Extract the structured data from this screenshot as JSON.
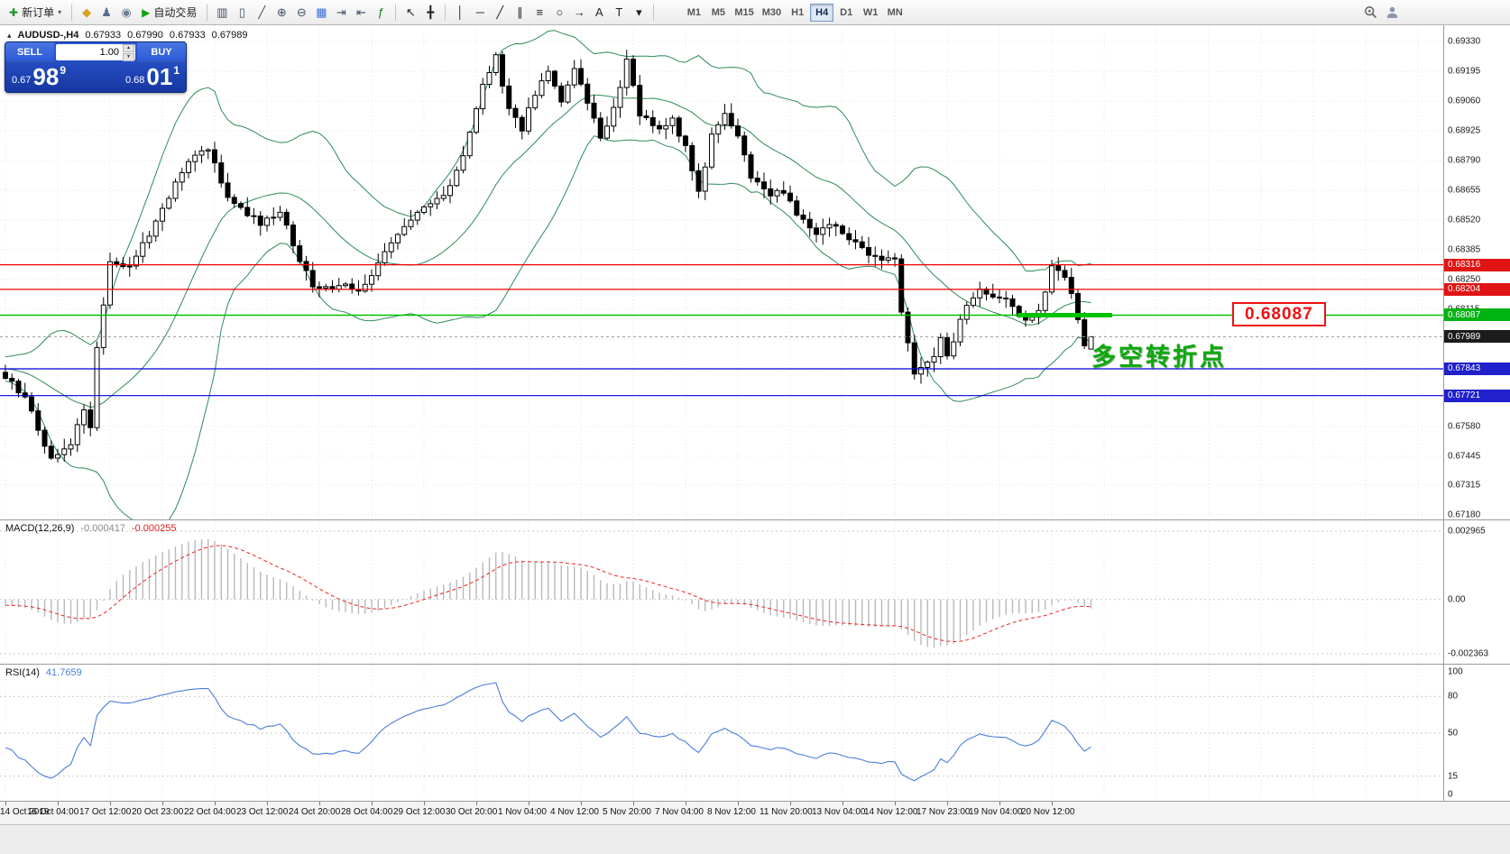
{
  "colors": {
    "bollinger": "#2e8b57",
    "grid": "#e4e4e4",
    "candle_up_fill": "#ffffff",
    "candle_down_fill": "#000000",
    "candle_outline": "#000000",
    "resistance_red": "#ee0000",
    "pivot_green": "#00c300",
    "support_blue": "#0000dd",
    "bid_line": "#9a9a9a",
    "macd_histogram": "#b9b9b9",
    "macd_signal": "#ee2222",
    "rsi_line": "#4a7edb",
    "level_dotted": "#c9c9c9",
    "badge_red": "#e11414",
    "badge_green": "#00b312",
    "badge_blue": "#2020cc",
    "badge_current": "#1c1c1c"
  },
  "toolbar": {
    "items": [
      {
        "type": "labelbtn",
        "name": "new-order-button",
        "glyph": "✚",
        "glyph_color": "#18962c",
        "label": "新订单",
        "caret": true
      },
      {
        "type": "sep"
      },
      {
        "type": "icon",
        "name": "metaeditor-icon",
        "glyph": "◆",
        "color": "#d9a21b"
      },
      {
        "type": "icon",
        "name": "profiles-icon",
        "glyph": "♟",
        "color": "#5a6b8c"
      },
      {
        "type": "icon",
        "name": "data-window-icon",
        "glyph": "◉",
        "color": "#6f7f95"
      },
      {
        "type": "labelbtn",
        "name": "autotrading-button",
        "glyph": "▶",
        "glyph_color": "#12a312",
        "label": "自动交易",
        "caret": false
      },
      {
        "type": "sep"
      },
      {
        "type": "icon",
        "name": "bar-chart-icon",
        "glyph": "▥",
        "color": "#3f4f63"
      },
      {
        "type": "icon",
        "name": "candlestick-chart-icon",
        "glyph": "▯",
        "color": "#3f4f63"
      },
      {
        "type": "icon",
        "name": "line-chart-icon",
        "glyph": "╱",
        "color": "#3f4f63"
      },
      {
        "type": "icon",
        "name": "zoom-in-icon",
        "glyph": "⊕",
        "color": "#3f4f63"
      },
      {
        "type": "icon",
        "name": "zoom-out-icon",
        "glyph": "⊖",
        "color": "#3f4f63"
      },
      {
        "type": "icon",
        "name": "tile-windows-icon",
        "glyph": "▦",
        "color": "#3a6fd8"
      },
      {
        "type": "icon",
        "name": "auto-scroll-icon",
        "glyph": "⇥",
        "color": "#3f4f63"
      },
      {
        "type": "icon",
        "name": "chart-shift-icon",
        "glyph": "⇤",
        "color": "#3f4f63"
      },
      {
        "type": "icon",
        "name": "indicators-icon",
        "glyph": "ƒ",
        "color": "#0c8a0c"
      },
      {
        "type": "sep"
      },
      {
        "type": "icon",
        "name": "cursor-icon",
        "glyph": "↖",
        "color": "#222222"
      },
      {
        "type": "icon",
        "name": "crosshair-icon",
        "glyph": "╋",
        "color": "#222222"
      },
      {
        "type": "sep"
      },
      {
        "type": "icon",
        "name": "vertical-line-icon",
        "glyph": "│",
        "color": "#222222"
      },
      {
        "type": "icon",
        "name": "horizontal-line-icon",
        "glyph": "─",
        "color": "#222222"
      },
      {
        "type": "icon",
        "name": "trendline-icon",
        "glyph": "╱",
        "color": "#222222"
      },
      {
        "type": "icon",
        "name": "equidistant-channel-icon",
        "glyph": "∥",
        "color": "#222222"
      },
      {
        "type": "icon",
        "name": "fibonacci-icon",
        "glyph": "≡",
        "color": "#222222"
      },
      {
        "type": "icon",
        "name": "shapes-icon",
        "glyph": "○",
        "color": "#222222"
      },
      {
        "type": "icon",
        "name": "arrows-icon",
        "glyph": "→",
        "color": "#222222"
      },
      {
        "type": "icon",
        "name": "text-icon",
        "glyph": "A",
        "color": "#222222"
      },
      {
        "type": "icon",
        "name": "text-label-icon",
        "glyph": "T",
        "color": "#222222"
      },
      {
        "type": "icon",
        "name": "objects-dropdown-icon",
        "glyph": "▾",
        "color": "#222222"
      },
      {
        "type": "sep"
      }
    ],
    "timeframes": [
      "M1",
      "M5",
      "M15",
      "M30",
      "H1",
      "H4",
      "D1",
      "W1",
      "MN"
    ],
    "active_timeframe": "H4"
  },
  "symbol_header": {
    "symbol": "AUDUSD-,H4",
    "open": "0.67933",
    "high": "0.67990",
    "low": "0.67933",
    "close": "0.67989"
  },
  "trade_panel": {
    "sell_label": "SELL",
    "buy_label": "BUY",
    "volume": "1.00",
    "sell_small": "0.67",
    "sell_big": "98",
    "sell_sup": "9",
    "buy_small": "0.68",
    "buy_big": "01",
    "buy_sup": "1"
  },
  "main_chart": {
    "price_ticks": [
      "0.69330",
      "0.69195",
      "0.69060",
      "0.68925",
      "0.68790",
      "0.68655",
      "0.68520",
      "0.68385",
      "0.68250",
      "0.68115",
      "0.67980",
      "0.67845",
      "0.67710",
      "0.67580",
      "0.67445",
      "0.67315",
      "0.67180"
    ],
    "badges": [
      {
        "text": "0.68316",
        "price": 0.68316,
        "type": "red"
      },
      {
        "text": "0.68204",
        "price": 0.68204,
        "type": "red"
      },
      {
        "text": "0.68087",
        "price": 0.68087,
        "type": "green"
      },
      {
        "text": "0.67989",
        "price": 0.67989,
        "type": "current"
      },
      {
        "text": "0.67843",
        "price": 0.67843,
        "type": "blue"
      },
      {
        "text": "0.67721",
        "price": 0.67721,
        "type": "blue"
      }
    ],
    "hlines": [
      {
        "price": 0.68316,
        "type": "red"
      },
      {
        "price": 0.68204,
        "type": "red"
      },
      {
        "price": 0.68087,
        "type": "green"
      },
      {
        "price": 0.67843,
        "type": "blue"
      },
      {
        "price": 0.67721,
        "type": "blue"
      }
    ],
    "bid_price": 0.67989,
    "callout": "0.68087",
    "annotation": "多空转折点"
  },
  "macd_panel": {
    "name": "MACD(12,26,9)",
    "value_main": "-0.000417",
    "value_signal": "-0.000255",
    "axis": [
      {
        "text": "0.002965",
        "value": 0.002965
      },
      {
        "text": "0.00",
        "value": 0
      },
      {
        "text": "-0.002363",
        "value": -0.002363
      }
    ]
  },
  "rsi_panel": {
    "name": "RSI(14)",
    "value": "41.7659",
    "axis": [
      {
        "text": "100",
        "value": 100
      },
      {
        "text": "80",
        "value": 80
      },
      {
        "text": "50",
        "value": 50
      },
      {
        "text": "15",
        "value": 15
      },
      {
        "text": "0",
        "value": 0
      }
    ],
    "levels": [
      80,
      50,
      15
    ]
  },
  "time_axis": [
    "14 Oct 2019",
    "16 Oct 04:00",
    "17 Oct 12:00",
    "20 Oct 23:00",
    "22 Oct 04:00",
    "23 Oct 12:00",
    "24 Oct 20:00",
    "28 Oct 04:00",
    "29 Oct 12:00",
    "30 Oct 20:00",
    "1 Nov 04:00",
    "4 Nov 12:00",
    "5 Nov 20:00",
    "7 Nov 04:00",
    "8 Nov 12:00",
    "11 Nov 20:00",
    "13 Nov 04:00",
    "14 Nov 12:00",
    "17 Nov 23:00",
    "19 Nov 04:00",
    "20 Nov 12:00"
  ],
  "chart_data": {
    "type": "candlestick",
    "symbol": "AUDUSD-",
    "timeframe": "H4",
    "current_candle": {
      "open": 0.67933,
      "high": 0.6799,
      "low": 0.67933,
      "close": 0.67989
    },
    "bid": 0.67989,
    "ask": 0.68011,
    "price_range": [
      0.6718,
      0.6933
    ],
    "candle_count": 167,
    "price_anchors": [
      [
        0,
        0.67808
      ],
      [
        3,
        0.67705
      ],
      [
        7,
        0.67438
      ],
      [
        10,
        0.675
      ],
      [
        12,
        0.67664
      ],
      [
        13,
        0.67582
      ],
      [
        14,
        0.67951
      ],
      [
        16,
        0.68321
      ],
      [
        19,
        0.683
      ],
      [
        21,
        0.68403
      ],
      [
        24,
        0.68567
      ],
      [
        28,
        0.68793
      ],
      [
        31,
        0.68834
      ],
      [
        34,
        0.68628
      ],
      [
        37,
        0.68546
      ],
      [
        39,
        0.68505
      ],
      [
        42,
        0.68567
      ],
      [
        44,
        0.68403
      ],
      [
        47,
        0.68218
      ],
      [
        50,
        0.68198
      ],
      [
        52,
        0.68239
      ],
      [
        54,
        0.68198
      ],
      [
        57,
        0.68321
      ],
      [
        59,
        0.68403
      ],
      [
        62,
        0.68526
      ],
      [
        65,
        0.68587
      ],
      [
        68,
        0.68669
      ],
      [
        70,
        0.68813
      ],
      [
        73,
        0.69141
      ],
      [
        75,
        0.69264
      ],
      [
        77,
        0.69018
      ],
      [
        79,
        0.68936
      ],
      [
        81,
        0.691
      ],
      [
        83,
        0.69182
      ],
      [
        85,
        0.69059
      ],
      [
        87,
        0.69223
      ],
      [
        89,
        0.69059
      ],
      [
        91,
        0.68895
      ],
      [
        93,
        0.69018
      ],
      [
        95,
        0.69244
      ],
      [
        97,
        0.68998
      ],
      [
        100,
        0.68936
      ],
      [
        102,
        0.68977
      ],
      [
        104,
        0.68854
      ],
      [
        106,
        0.68649
      ],
      [
        108,
        0.68895
      ],
      [
        110,
        0.68998
      ],
      [
        112,
        0.68895
      ],
      [
        114,
        0.6871
      ],
      [
        117,
        0.68628
      ],
      [
        119,
        0.68649
      ],
      [
        121,
        0.68546
      ],
      [
        124,
        0.68464
      ],
      [
        126,
        0.68505
      ],
      [
        129,
        0.68444
      ],
      [
        131,
        0.68403
      ],
      [
        133,
        0.68341
      ],
      [
        136,
        0.68341
      ],
      [
        137,
        0.68095
      ],
      [
        139,
        0.67808
      ],
      [
        140,
        0.67849
      ],
      [
        142,
        0.6791
      ],
      [
        143,
        0.67992
      ],
      [
        144,
        0.6789
      ],
      [
        147,
        0.68136
      ],
      [
        149,
        0.68198
      ],
      [
        151,
        0.68177
      ],
      [
        153,
        0.68157
      ],
      [
        156,
        0.68054
      ],
      [
        158,
        0.68095
      ],
      [
        160,
        0.683
      ],
      [
        162,
        0.68259
      ],
      [
        163,
        0.682
      ],
      [
        164,
        0.6808
      ],
      [
        165,
        0.6794
      ],
      [
        166,
        0.67989
      ]
    ],
    "indicators": [
      {
        "name": "Bollinger Bands",
        "period": 20,
        "deviation": 2
      },
      {
        "name": "MACD",
        "params": [
          12,
          26,
          9
        ],
        "values": [
          -0.000417,
          -0.000255
        ],
        "range": [
          -0.002363,
          0.002965
        ]
      },
      {
        "name": "RSI",
        "period": 14,
        "value": 41.7659
      }
    ],
    "levels": {
      "resistance": [
        0.68316,
        0.68204
      ],
      "pivot": 0.68087,
      "support": [
        0.67843,
        0.67721
      ]
    }
  }
}
